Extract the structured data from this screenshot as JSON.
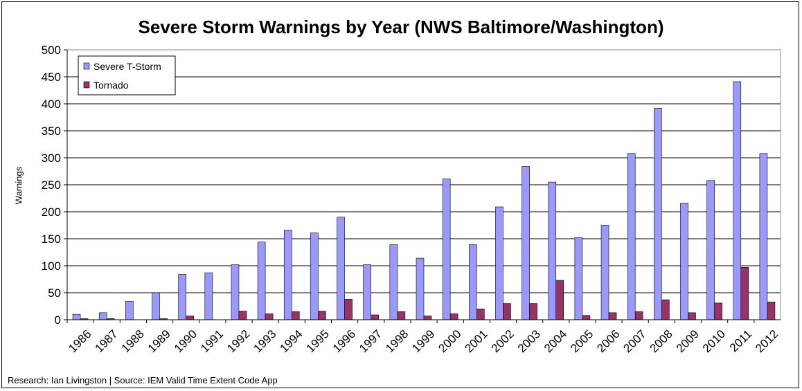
{
  "credit": "Research: Ian Livingston | Source: IEM Valid Time Extent Code App",
  "chart_data": {
    "type": "bar",
    "title": "Severe Storm Warnings by Year (NWS Baltimore/Washington)",
    "xlabel": "",
    "ylabel": "Warnings",
    "ylim": [
      0,
      500
    ],
    "yticks": [
      0,
      50,
      100,
      150,
      200,
      250,
      300,
      350,
      400,
      450,
      500
    ],
    "grid": true,
    "legend_position": "top-left",
    "categories": [
      "1986",
      "1987",
      "1988",
      "1989",
      "1990",
      "1991",
      "1992",
      "1993",
      "1994",
      "1995",
      "1996",
      "1997",
      "1998",
      "1999",
      "2000",
      "2001",
      "2002",
      "2003",
      "2004",
      "2005",
      "2006",
      "2007",
      "2008",
      "2009",
      "2010",
      "2011",
      "2012"
    ],
    "series": [
      {
        "name": "Severe T-Storm",
        "color": "#9999ff",
        "values": [
          10,
          13,
          34,
          50,
          84,
          87,
          102,
          144,
          166,
          161,
          190,
          102,
          139,
          114,
          261,
          139,
          209,
          284,
          255,
          152,
          175,
          308,
          392,
          216,
          258,
          441,
          308
        ]
      },
      {
        "name": "Tornado",
        "color": "#993366",
        "values": [
          2,
          2,
          0,
          2,
          7,
          0,
          16,
          11,
          15,
          16,
          38,
          9,
          15,
          7,
          11,
          20,
          30,
          30,
          73,
          8,
          13,
          15,
          37,
          13,
          31,
          97,
          33
        ]
      }
    ]
  }
}
